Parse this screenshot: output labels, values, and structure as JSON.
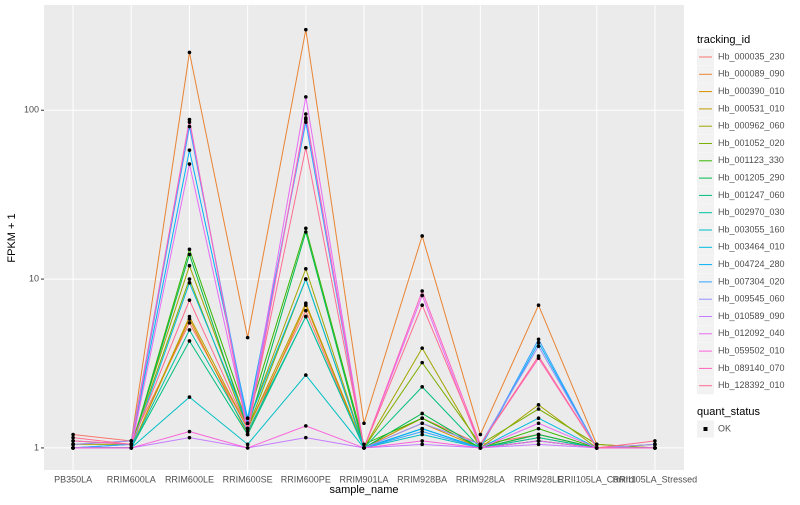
{
  "chart_data": {
    "type": "line",
    "x_label": "sample_name",
    "y_label": "FPKM + 1",
    "log_y": true,
    "grid": true,
    "legend_title": "tracking_id",
    "legend_position": "right",
    "shape_legend_title": "quant_status",
    "shape_legend_labels": [
      "OK"
    ],
    "categories": [
      "PB350LA",
      "RRIM600LA",
      "RRIM600LE",
      "RRIM600SE",
      "RRIM600PE",
      "RRIM901LA",
      "RRIM928BA",
      "RRIM928LA",
      "RRIM928LE",
      "RRII105LA_Control",
      "RRII105LA_Stressed"
    ],
    "ylim": [
      0.74,
      420
    ],
    "yticks": [
      1,
      10,
      100
    ],
    "series": [
      {
        "name": "Hb_000035_230",
        "color": "#F8766D",
        "values": [
          1.2,
          1.1,
          5.5,
          1.3,
          6.5,
          1.0,
          1.5,
          1.05,
          1.2,
          1.0,
          1.05
        ]
      },
      {
        "name": "Hb_000089_090",
        "color": "#EA8331",
        "values": [
          1.05,
          1.1,
          220,
          4.5,
          300,
          1.4,
          18,
          1.2,
          7,
          1.05,
          1.0
        ]
      },
      {
        "name": "Hb_000390_010",
        "color": "#D89000",
        "values": [
          1.0,
          1.0,
          5.8,
          1.2,
          7,
          1.0,
          1.4,
          1.0,
          1.15,
          1.0,
          1.0
        ]
      },
      {
        "name": "Hb_000531_010",
        "color": "#C09B00",
        "values": [
          1.0,
          1.0,
          6,
          1.3,
          7.2,
          1.0,
          1.5,
          1.0,
          1.2,
          1.0,
          1.05
        ]
      },
      {
        "name": "Hb_000962_060",
        "color": "#A3A500",
        "values": [
          1.05,
          1.05,
          12,
          1.4,
          11.5,
          1.0,
          3.9,
          1.0,
          1.8,
          1.0,
          1.0
        ]
      },
      {
        "name": "Hb_001052_020",
        "color": "#7CAE00",
        "values": [
          1.1,
          1.05,
          10,
          1.3,
          10,
          1.0,
          3.2,
          1.05,
          1.7,
          1.05,
          1.0
        ]
      },
      {
        "name": "Hb_001123_330",
        "color": "#39B600",
        "values": [
          1.0,
          1.0,
          15,
          1.5,
          20,
          1.05,
          1.5,
          1.0,
          1.3,
          1.0,
          1.0
        ]
      },
      {
        "name": "Hb_001205_290",
        "color": "#00BB4E",
        "values": [
          1.0,
          1.0,
          14,
          1.3,
          19,
          1.0,
          1.6,
          1.0,
          1.2,
          1.0,
          1.0
        ]
      },
      {
        "name": "Hb_001247_060",
        "color": "#00BF7D",
        "values": [
          1.0,
          1.0,
          4.3,
          1.2,
          6,
          1.0,
          2.3,
          1.0,
          1.1,
          1.0,
          1.0
        ]
      },
      {
        "name": "Hb_002970_030",
        "color": "#00C1A3",
        "values": [
          1.0,
          1.0,
          5,
          1.25,
          6,
          1.0,
          1.3,
          1.0,
          1.15,
          1.0,
          1.0
        ]
      },
      {
        "name": "Hb_003055_160",
        "color": "#00BFC4",
        "values": [
          1.0,
          1.0,
          2.0,
          1.05,
          2.7,
          1.0,
          1.2,
          1.0,
          1.1,
          1.0,
          1.0
        ]
      },
      {
        "name": "Hb_003464_010",
        "color": "#00BAE0",
        "values": [
          1.0,
          1.0,
          9.5,
          1.4,
          10,
          1.0,
          1.3,
          1.0,
          1.5,
          1.0,
          1.0
        ]
      },
      {
        "name": "Hb_004724_280",
        "color": "#00B0F6",
        "values": [
          1.0,
          1.05,
          58,
          1.5,
          85,
          1.0,
          1.3,
          1.0,
          4.2,
          1.0,
          1.0
        ]
      },
      {
        "name": "Hb_007304_020",
        "color": "#35A2FF",
        "values": [
          1.0,
          1.05,
          80,
          1.4,
          88,
          1.0,
          1.25,
          1.0,
          4.4,
          1.0,
          1.0
        ]
      },
      {
        "name": "Hb_009545_060",
        "color": "#9590FF",
        "values": [
          1.05,
          1.1,
          85,
          1.3,
          90,
          1.0,
          1.4,
          1.05,
          4.0,
          1.0,
          1.05
        ]
      },
      {
        "name": "Hb_010589_090",
        "color": "#C77CFF",
        "values": [
          1.0,
          1.0,
          1.15,
          1.0,
          1.15,
          1.0,
          1.05,
          1.0,
          1.05,
          1.0,
          1.0
        ]
      },
      {
        "name": "Hb_012092_040",
        "color": "#E76BF3",
        "values": [
          1.0,
          1.0,
          48,
          1.3,
          120,
          1.0,
          8,
          1.0,
          1.4,
          1.0,
          1.0
        ]
      },
      {
        "name": "Hb_059502_010",
        "color": "#FA62DB",
        "values": [
          1.0,
          1.0,
          1.25,
          1.0,
          1.35,
          1.0,
          1.1,
          1.0,
          1.1,
          1.0,
          1.0
        ]
      },
      {
        "name": "Hb_089140_070",
        "color": "#FF62BC",
        "values": [
          1.1,
          1.05,
          88,
          1.2,
          95,
          1.0,
          8.5,
          1.05,
          3.4,
          1.0,
          1.0
        ]
      },
      {
        "name": "Hb_128392_010",
        "color": "#FF6C91",
        "values": [
          1.15,
          1.05,
          7.5,
          1.3,
          60,
          1.0,
          7,
          1.05,
          3.5,
          1.0,
          1.1
        ]
      }
    ]
  }
}
